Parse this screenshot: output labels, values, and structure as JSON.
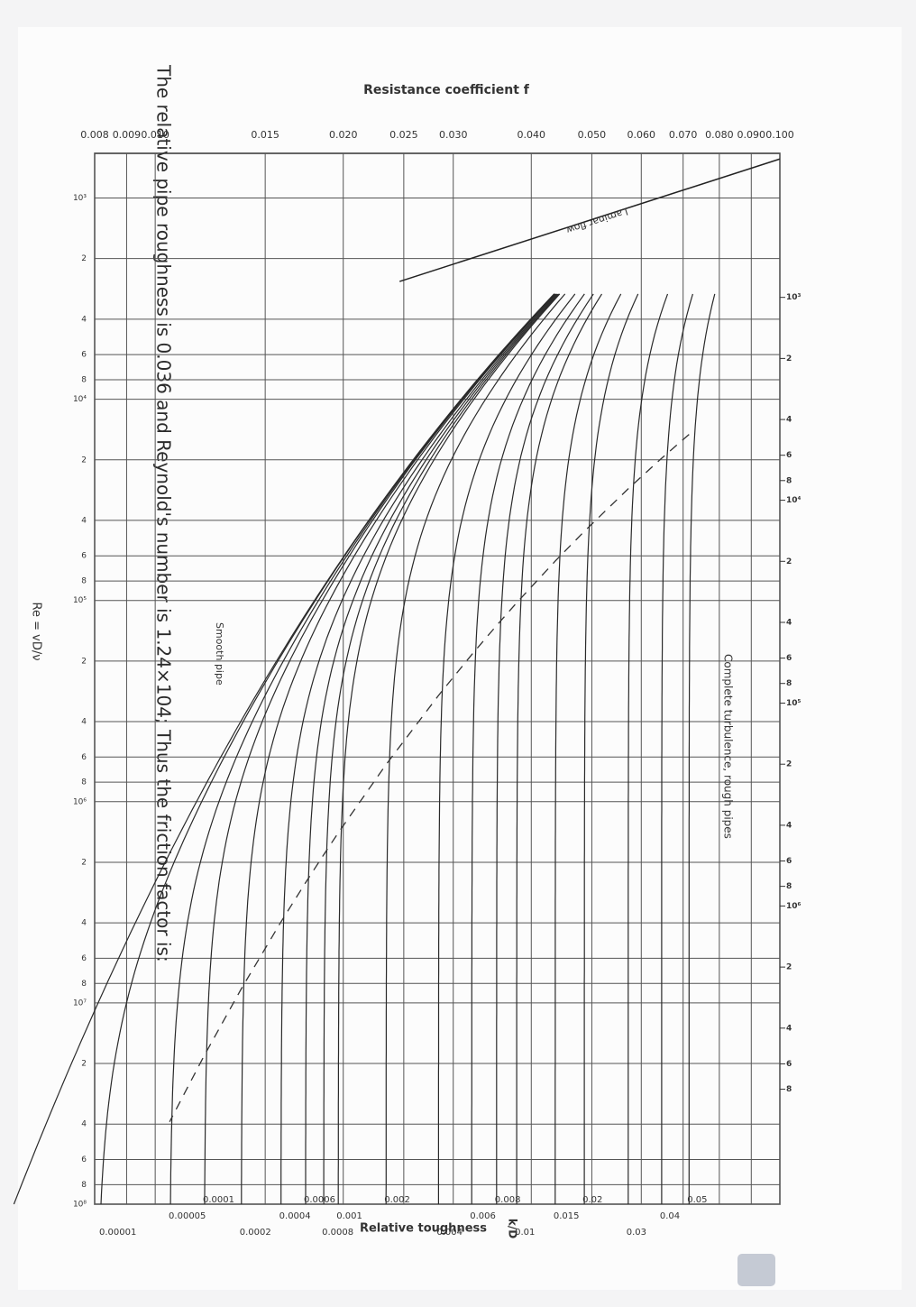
{
  "question": "The relative pipe roughness is 0.036 and Reynold's number is 1.24×104; Thus the friction factor is:",
  "chart_data": {
    "type": "moody",
    "y_label": "Resistance coefficient f",
    "x_label": "Re = vD/ν",
    "r_label": "Relative toughness",
    "r_symbol": "k/D",
    "annotations": [
      "Laminar flow",
      "Complete turbulence, rough pipes",
      "Smooth pipe"
    ],
    "log": true,
    "grid": true,
    "ylim": [
      0.008,
      0.1
    ],
    "yticks": [
      0.008,
      0.009,
      {
        "value": 0.01,
        "label": "0.010"
      },
      0.015,
      {
        "value": 0.02,
        "label": "0.020"
      },
      0.025,
      {
        "value": 0.03,
        "label": "0.030"
      },
      {
        "value": 0.04,
        "label": "0.040"
      },
      {
        "value": 0.05,
        "label": "0.050"
      },
      {
        "value": 0.06,
        "label": "0.060"
      },
      {
        "value": 0.07,
        "label": "0.070"
      },
      {
        "value": 0.08,
        "label": "0.080"
      },
      {
        "value": 0.09,
        "label": "0.090"
      },
      {
        "value": 0.1,
        "label": "0.100"
      }
    ],
    "xlim": [
      600,
      100000000
    ],
    "xticks": [
      {
        "value": 1000,
        "label": "10³"
      },
      {
        "value": 2000,
        "label": "2"
      },
      {
        "value": 4000,
        "label": "4"
      },
      {
        "value": 6000,
        "label": "6"
      },
      {
        "value": 8000,
        "label": "8"
      },
      {
        "value": 10000,
        "label": "10⁴"
      },
      {
        "value": 20000,
        "label": "2"
      },
      {
        "value": 40000,
        "label": "4"
      },
      {
        "value": 60000,
        "label": "6"
      },
      {
        "value": 80000,
        "label": "8"
      },
      {
        "value": 100000,
        "label": "10⁵"
      },
      {
        "value": 200000,
        "label": "2"
      },
      {
        "value": 400000,
        "label": "4"
      },
      {
        "value": 600000,
        "label": "6"
      },
      {
        "value": 800000,
        "label": "8"
      },
      {
        "value": 1000000,
        "label": "10⁶"
      },
      {
        "value": 2000000,
        "label": "2"
      },
      {
        "value": 4000000,
        "label": "4"
      },
      {
        "value": 6000000,
        "label": "6"
      },
      {
        "value": 8000000,
        "label": "8"
      },
      {
        "value": 10000000,
        "label": "10⁷"
      },
      {
        "value": 20000000,
        "label": "2"
      },
      {
        "value": 40000000,
        "label": "4"
      },
      {
        "value": 60000000,
        "label": "6"
      },
      {
        "value": 80000000,
        "label": "8"
      },
      {
        "value": 100000000,
        "label": "10⁸"
      }
    ],
    "x2lim": [
      195,
      29500000
    ],
    "x2ticks": [
      {
        "value": 1000,
        "label": "10³"
      },
      {
        "value": 2000,
        "label": "2"
      },
      {
        "value": 4000,
        "label": "4"
      },
      {
        "value": 6000,
        "label": "6"
      },
      {
        "value": 8000,
        "label": "8"
      },
      {
        "value": 10000,
        "label": "10⁴"
      },
      {
        "value": 20000,
        "label": "2"
      },
      {
        "value": 40000,
        "label": "4"
      },
      {
        "value": 60000,
        "label": "6"
      },
      {
        "value": 80000,
        "label": "8"
      },
      {
        "value": 100000,
        "label": "10⁵"
      },
      {
        "value": 200000,
        "label": "2"
      },
      {
        "value": 400000,
        "label": "4"
      },
      {
        "value": 600000,
        "label": "6"
      },
      {
        "value": 800000,
        "label": "8"
      },
      {
        "value": 1000000,
        "label": "10⁶"
      },
      {
        "value": 2000000,
        "label": "2"
      },
      {
        "value": 4000000,
        "label": "4"
      },
      {
        "value": 6000000,
        "label": "6"
      },
      {
        "value": 8000000,
        "label": "8"
      }
    ],
    "roughness": [
      0.05,
      0.04,
      0.03,
      0.02,
      0.015,
      0.01,
      0.008,
      0.006,
      0.004,
      0.002,
      0.001,
      0.0008,
      0.0006,
      0.0004,
      0.0002,
      0.0001,
      5e-05,
      1e-05
    ],
    "color": "#2a2a2a"
  }
}
